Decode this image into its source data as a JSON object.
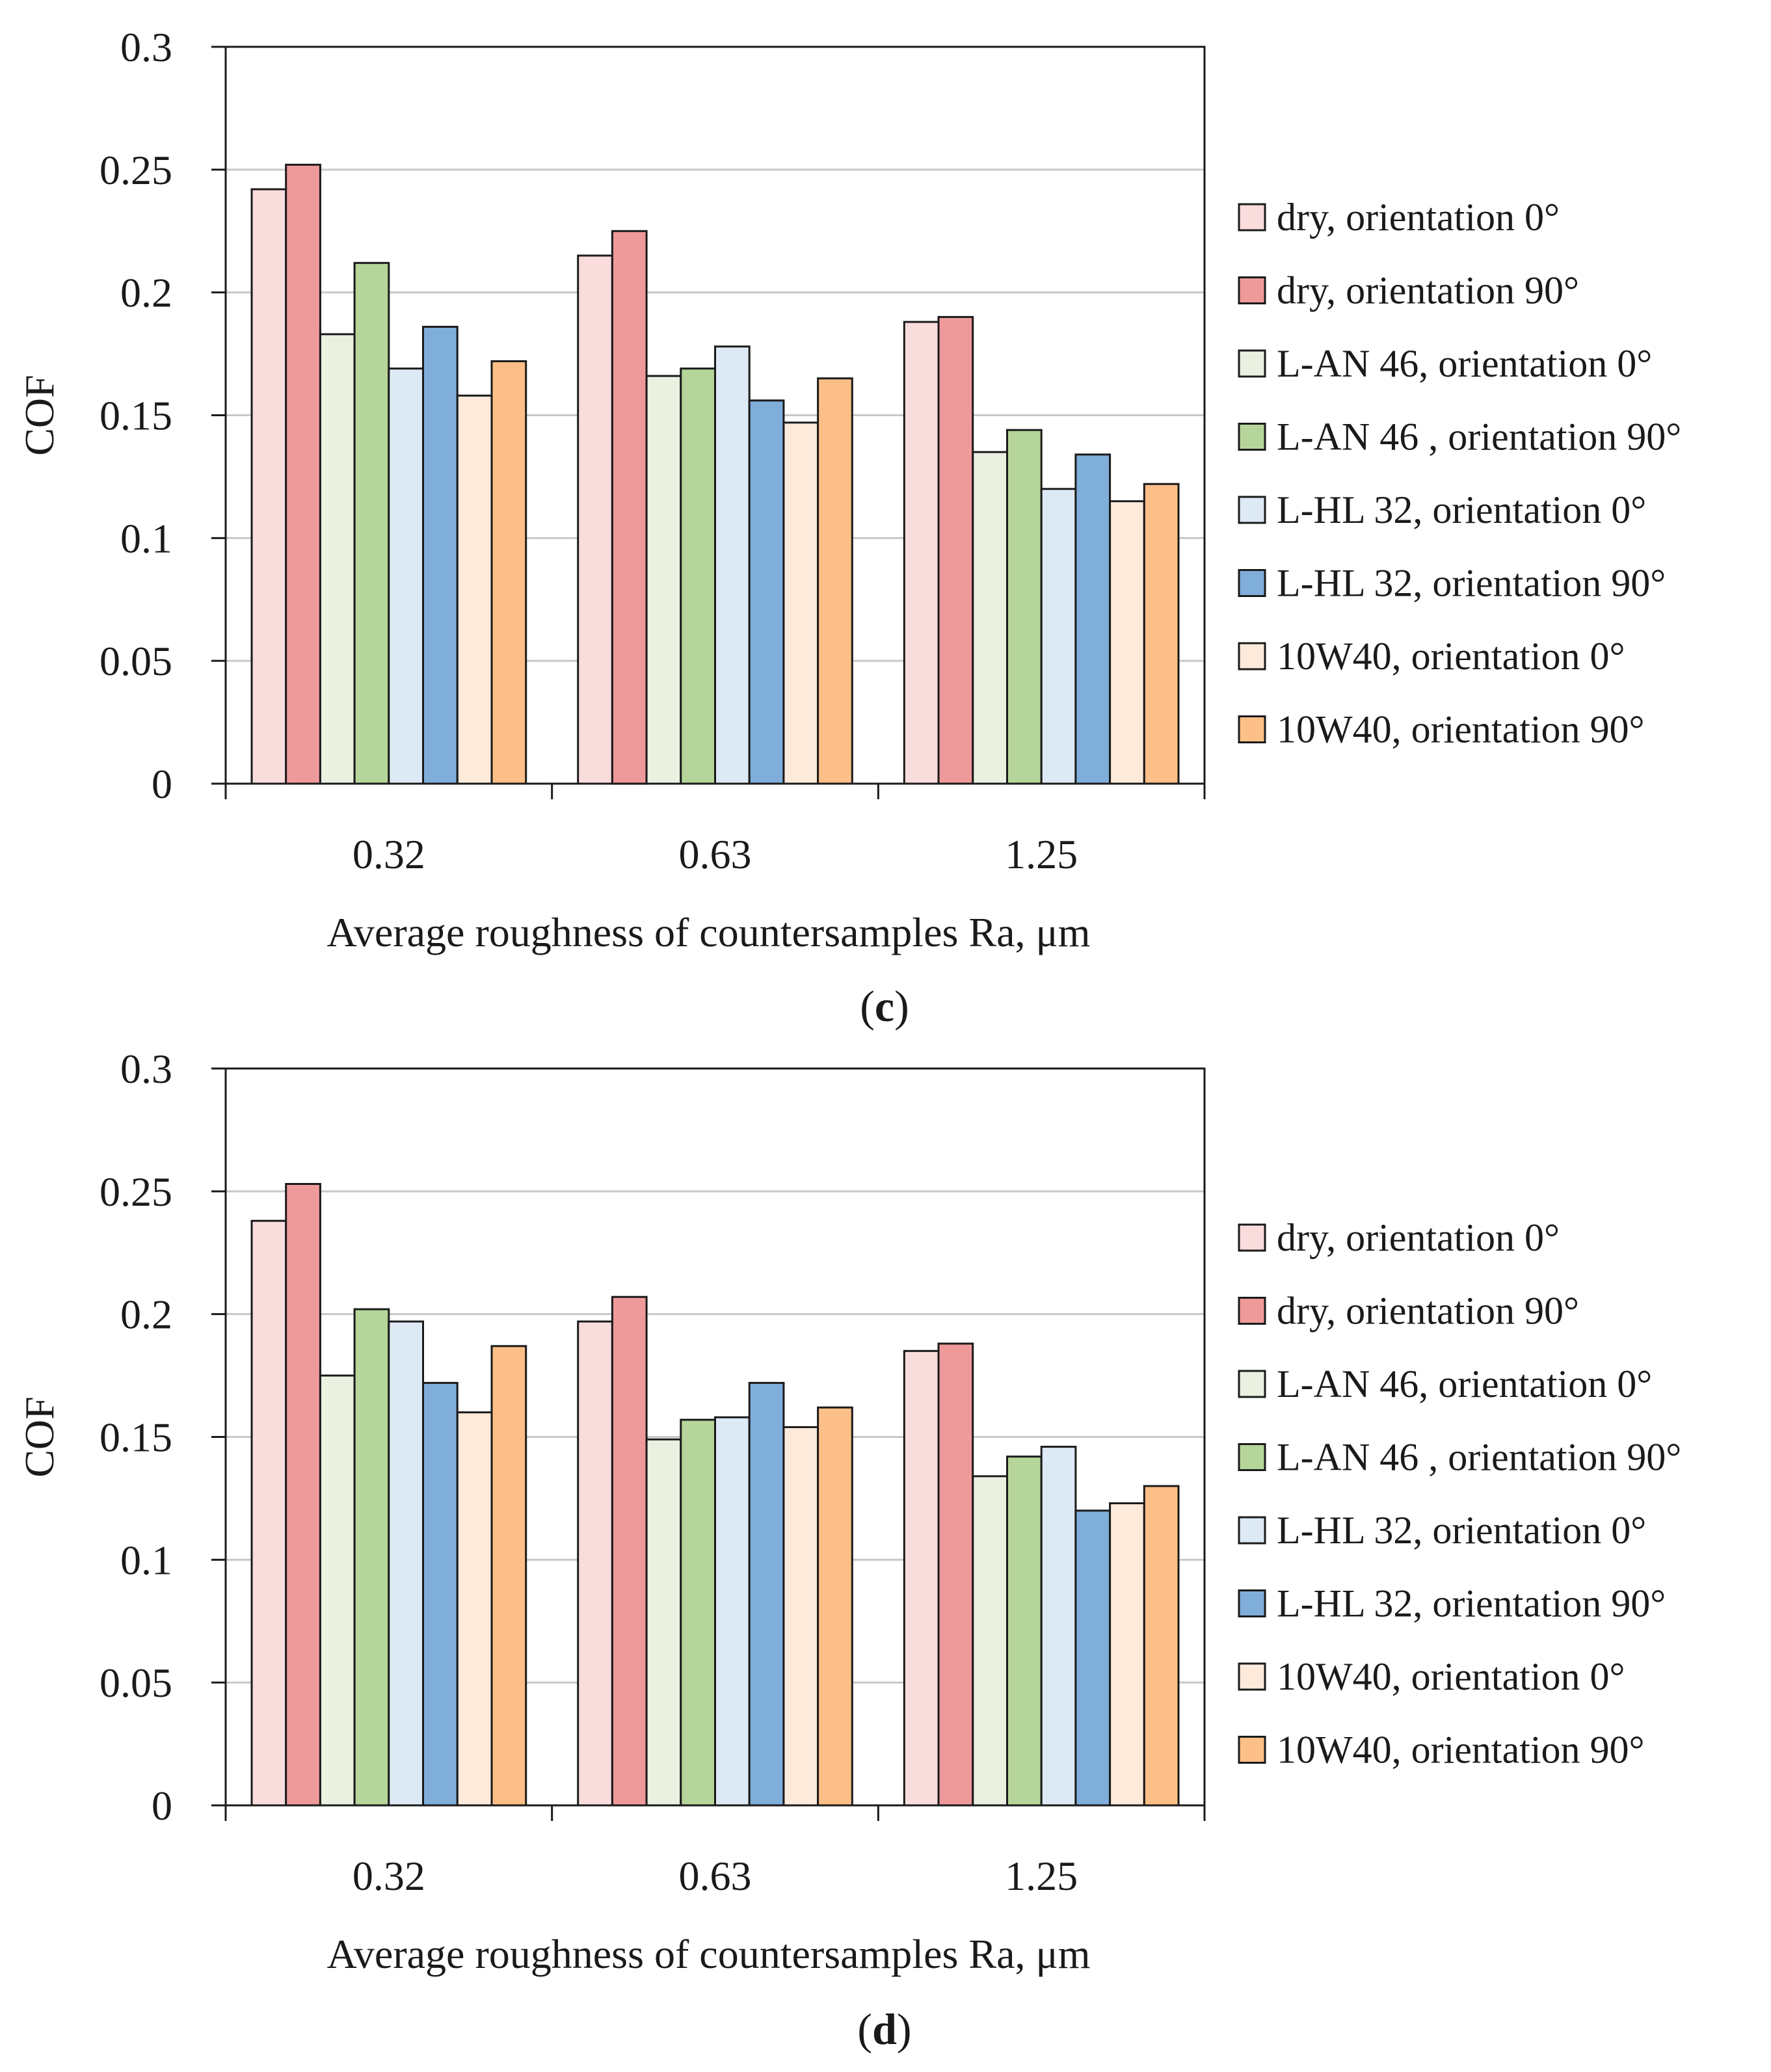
{
  "chart_data": [
    {
      "type": "bar",
      "caption_letter": "c",
      "categories": [
        "0.32",
        "0.63",
        "1.25"
      ],
      "xlabel": "Average roughness of countersamples Ra, μm",
      "ylabel": "COF",
      "ylim": [
        0,
        0.3
      ],
      "yticks": [
        "0",
        "0.05",
        "0.1",
        "0.15",
        "0.2",
        "0.25",
        "0.3"
      ],
      "grid": true,
      "legend_position": "right",
      "series": [
        {
          "name": "dry, orientation 0°",
          "color": "#f9dcdc",
          "values": [
            0.242,
            0.215,
            0.188
          ]
        },
        {
          "name": "dry, orientation 90°",
          "color": "#ef9a9a",
          "values": [
            0.252,
            0.225,
            0.19
          ]
        },
        {
          "name": "L-AN 46, orientation 0°",
          "color": "#eaf1e0",
          "values": [
            0.183,
            0.166,
            0.135
          ]
        },
        {
          "name": "L-AN 46 , orientation 90°",
          "color": "#b5d59a",
          "values": [
            0.212,
            0.169,
            0.144
          ]
        },
        {
          "name": "L-HL 32, orientation 0°",
          "color": "#dde9f5",
          "values": [
            0.169,
            0.178,
            0.12
          ]
        },
        {
          "name": "L-HL 32, orientation 90°",
          "color": "#80aedb",
          "values": [
            0.186,
            0.156,
            0.134
          ]
        },
        {
          "name": "10W40, orientation 0°",
          "color": "#fdeadb",
          "values": [
            0.158,
            0.147,
            0.115
          ]
        },
        {
          "name": "10W40, orientation 90°",
          "color": "#fbbf87",
          "values": [
            0.172,
            0.165,
            0.122
          ]
        }
      ]
    },
    {
      "type": "bar",
      "caption_letter": "d",
      "categories": [
        "0.32",
        "0.63",
        "1.25"
      ],
      "xlabel": "Average roughness of countersamples Ra, μm",
      "ylabel": "COF",
      "ylim": [
        0,
        0.3
      ],
      "yticks": [
        "0",
        "0.05",
        "0.1",
        "0.15",
        "0.2",
        "0.25",
        "0.3"
      ],
      "grid": true,
      "legend_position": "right",
      "series": [
        {
          "name": "dry, orientation 0°",
          "color": "#f9dcdc",
          "values": [
            0.238,
            0.197,
            0.185
          ]
        },
        {
          "name": "dry, orientation 90°",
          "color": "#ef9a9a",
          "values": [
            0.253,
            0.207,
            0.188
          ]
        },
        {
          "name": "L-AN 46, orientation 0°",
          "color": "#eaf1e0",
          "values": [
            0.175,
            0.149,
            0.134
          ]
        },
        {
          "name": "L-AN 46 , orientation 90°",
          "color": "#b5d59a",
          "values": [
            0.202,
            0.157,
            0.142
          ]
        },
        {
          "name": "L-HL 32, orientation 0°",
          "color": "#dde9f5",
          "values": [
            0.197,
            0.158,
            0.146
          ]
        },
        {
          "name": "L-HL 32, orientation 90°",
          "color": "#80aedb",
          "values": [
            0.172,
            0.172,
            0.12
          ]
        },
        {
          "name": "10W40, orientation 0°",
          "color": "#fdeadb",
          "values": [
            0.16,
            0.154,
            0.123
          ]
        },
        {
          "name": "10W40, orientation 90°",
          "color": "#fbbf87",
          "values": [
            0.187,
            0.162,
            0.13
          ]
        }
      ]
    }
  ]
}
